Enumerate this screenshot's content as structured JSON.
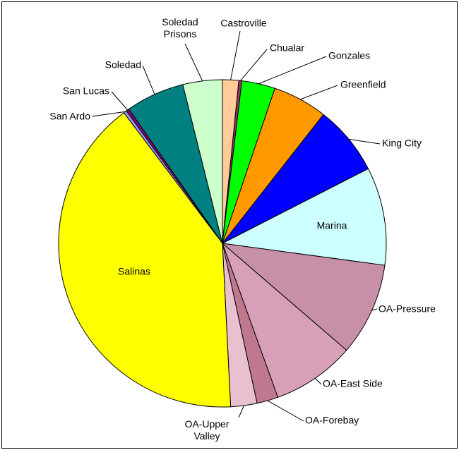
{
  "chart_data": {
    "type": "pie",
    "categories": [
      "Castroville",
      "Chualar",
      "Gonzales",
      "Greenfield",
      "King City",
      "Marina",
      "OA-Pressure",
      "OA-East Side",
      "OA-Forebay",
      "OA-Upper Valley",
      "Salinas",
      "San Ardo",
      "San Lucas",
      "Soledad",
      "Soledad Prisons"
    ],
    "values": [
      1.6,
      0.3,
      3.3,
      5.4,
      6.9,
      9.7,
      9.2,
      8.2,
      2.1,
      2.6,
      40.6,
      0.3,
      0.3,
      5.8,
      3.9
    ],
    "colors": [
      "#ffcc99",
      "#993366",
      "#00ff00",
      "#ff9900",
      "#0000ff",
      "#ccffff",
      "#c890a8",
      "#d8a0b8",
      "#c07890",
      "#e8c0d0",
      "#ffff00",
      "#9999ff",
      "#800080",
      "#008080",
      "#ccffcc"
    ]
  }
}
